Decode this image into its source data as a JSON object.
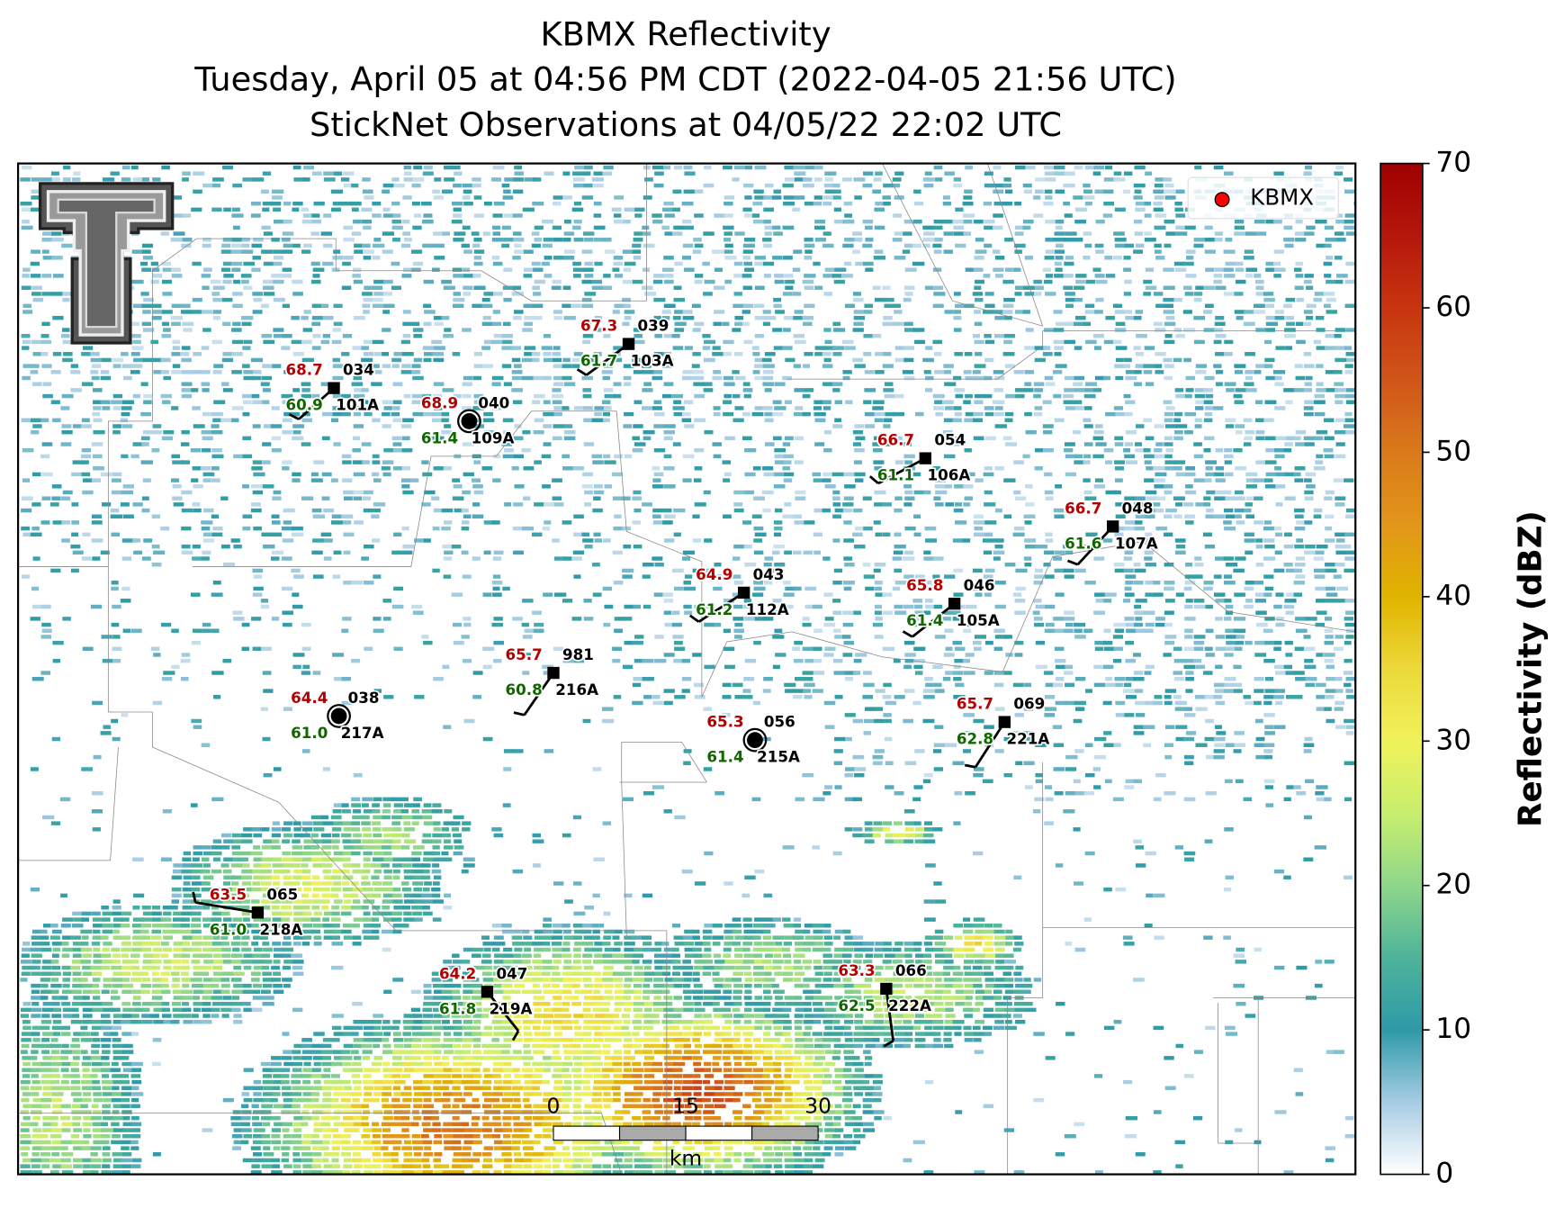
{
  "title": [
    "KBMX Reflectivity",
    "Tuesday, April 05 at 04:56 PM CDT (2022-04-05 21:56 UTC)",
    "StickNet Observations at 04/05/22 22:02 UTC"
  ],
  "legend": {
    "label": "KBMX"
  },
  "stations": [
    {
      "id": "101A",
      "temperature": "68.7",
      "dewpoint": "60.9",
      "pressure": "034"
    },
    {
      "id": "109A",
      "temperature": "68.9",
      "dewpoint": "61.4",
      "pressure": "040"
    },
    {
      "id": "103A",
      "temperature": "67.3",
      "dewpoint": "61.7",
      "pressure": "039"
    },
    {
      "id": "106A",
      "temperature": "66.7",
      "dewpoint": "61.1",
      "pressure": "054"
    },
    {
      "id": "107A",
      "temperature": "66.7",
      "dewpoint": "61.6",
      "pressure": "048"
    },
    {
      "id": "112A",
      "temperature": "64.9",
      "dewpoint": "61.2",
      "pressure": "043"
    },
    {
      "id": "105A",
      "temperature": "65.8",
      "dewpoint": "61.4",
      "pressure": "046"
    },
    {
      "id": "216A",
      "temperature": "65.7",
      "dewpoint": "60.8",
      "pressure": "981"
    },
    {
      "id": "217A",
      "temperature": "64.4",
      "dewpoint": "61.0",
      "pressure": "038"
    },
    {
      "id": "215A",
      "temperature": "65.3",
      "dewpoint": "61.4",
      "pressure": "056"
    },
    {
      "id": "221A",
      "temperature": "65.7",
      "dewpoint": "62.8",
      "pressure": "069"
    },
    {
      "id": "218A",
      "temperature": "63.5",
      "dewpoint": "61.0",
      "pressure": "065"
    },
    {
      "id": "219A",
      "temperature": "64.2",
      "dewpoint": "61.8",
      "pressure": "047"
    },
    {
      "id": "222A",
      "temperature": "63.3",
      "dewpoint": "62.5",
      "pressure": "066"
    }
  ],
  "colorbar": {
    "label": "Reflectivity (dBZ)",
    "lim": [
      0,
      70
    ],
    "ticks": [
      0,
      10,
      20,
      30,
      40,
      50,
      60,
      70
    ]
  },
  "scale_bar": {
    "ticks": [
      0,
      15,
      30
    ],
    "unit": "km"
  }
}
